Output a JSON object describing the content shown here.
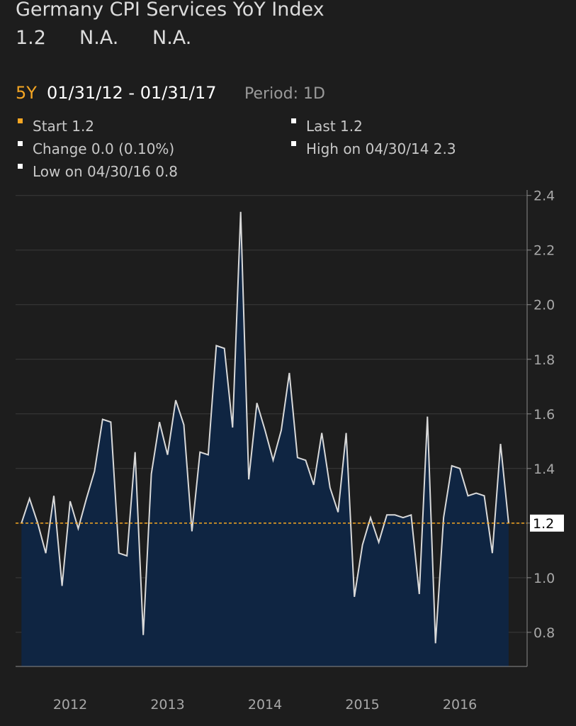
{
  "chart_data": {
    "type": "line",
    "title": "Germany CPI Services YoY Index",
    "quote": [
      1.2,
      "N.A.",
      "N.A."
    ],
    "range_label": "5Y",
    "date_range": "01/31/12 - 01/31/17",
    "period": "Period: 1D",
    "stats": [
      {
        "text": "Start 1.2",
        "color": "#f5a623"
      },
      {
        "text": "Last 1.2",
        "color": "#ffffff"
      },
      {
        "text": "Change 0.0 (0.10%)",
        "color": "#ffffff"
      },
      {
        "text": "High on 04/30/14 2.3",
        "color": "#ffffff"
      },
      {
        "text": "Low on 04/30/16 0.8",
        "color": "#ffffff"
      }
    ],
    "x": [
      2012,
      2012.083,
      2012.167,
      2012.25,
      2012.333,
      2012.417,
      2012.5,
      2012.583,
      2012.667,
      2012.75,
      2012.833,
      2012.917,
      2013,
      2013.083,
      2013.167,
      2013.25,
      2013.333,
      2013.417,
      2013.5,
      2013.583,
      2013.667,
      2013.75,
      2013.833,
      2013.917,
      2014,
      2014.083,
      2014.167,
      2014.25,
      2014.333,
      2014.417,
      2014.5,
      2014.583,
      2014.667,
      2014.75,
      2014.833,
      2014.917,
      2015,
      2015.083,
      2015.167,
      2015.25,
      2015.333,
      2015.417,
      2015.5,
      2015.583,
      2015.667,
      2015.75,
      2015.833,
      2015.917,
      2016,
      2016.083,
      2016.167,
      2016.25,
      2016.333,
      2016.417,
      2016.5,
      2016.583,
      2016.667,
      2016.75,
      2016.833,
      2016.917,
      2017
    ],
    "values": [
      1.2,
      1.29,
      1.2,
      1.09,
      1.3,
      0.97,
      1.28,
      1.18,
      1.29,
      1.39,
      1.58,
      1.57,
      1.09,
      1.08,
      1.46,
      0.79,
      1.38,
      1.57,
      1.45,
      1.65,
      1.56,
      1.17,
      1.46,
      1.45,
      1.85,
      1.84,
      1.55,
      2.34,
      1.36,
      1.64,
      1.54,
      1.43,
      1.54,
      1.75,
      1.44,
      1.43,
      1.34,
      1.53,
      1.33,
      1.24,
      1.53,
      0.93,
      1.12,
      1.22,
      1.13,
      1.23,
      1.23,
      1.22,
      1.23,
      0.94,
      1.59,
      0.76,
      1.22,
      1.41,
      1.4,
      1.3,
      1.31,
      1.3,
      1.09,
      1.49,
      1.2
    ],
    "color": "#d9d9d9",
    "area_color": "#0f2542",
    "reference_line": {
      "value": 1.2,
      "color": "#f5a623"
    },
    "xlim": [
      2011.94,
      2017.19
    ],
    "xticks": [
      {
        "value": 2012.5,
        "label": "2012"
      },
      {
        "value": 2013.5,
        "label": "2013"
      },
      {
        "value": 2014.5,
        "label": "2014"
      },
      {
        "value": 2015.5,
        "label": "2015"
      },
      {
        "value": 2016.5,
        "label": "2016"
      }
    ],
    "ylim": [
      0.675,
      2.42
    ],
    "yticks": [
      0.8,
      {
        "value": 1,
        "label": "1.0"
      },
      1.2,
      1.4,
      1.6,
      1.8,
      {
        "value": 2,
        "label": "2.0"
      },
      2.2,
      2.4
    ],
    "grid": true
  }
}
